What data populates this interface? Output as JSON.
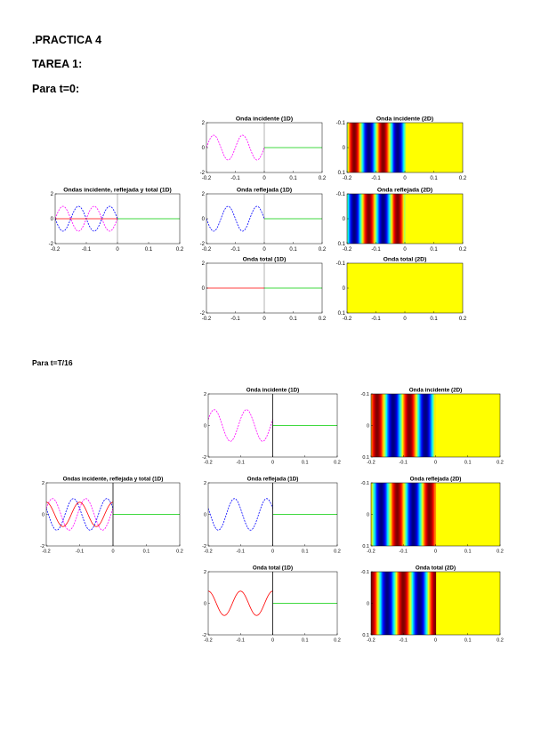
{
  "doc": {
    "heading": ".PRACTICA 4",
    "task": "TAREA 1:",
    "section1": "Para t=0:",
    "section2": "Para t=T/16"
  },
  "chart_data": [
    {
      "id": "s1-combined",
      "type": "line",
      "title": "Ondas incidente, reflejada y total (1D)",
      "xlim": [
        -0.2,
        0.2
      ],
      "ylim": [
        -2,
        2
      ],
      "xticks": [
        "-0.2",
        "-0.1",
        "0",
        "0.1",
        "0.2"
      ],
      "yticks": [
        "2",
        "0",
        "-2"
      ],
      "series": [
        {
          "color": "#ff00ff",
          "dash": true,
          "kind": "sin",
          "amp": 1,
          "phase": 0
        },
        {
          "color": "#0000ff",
          "dash": true,
          "kind": "sin",
          "amp": 1,
          "phase": 3.14159
        },
        {
          "color": "#ff0000",
          "dash": false,
          "kind": "zero"
        },
        {
          "color": "#00cc00",
          "dash": false,
          "kind": "right"
        }
      ]
    },
    {
      "id": "s1-inc1d",
      "type": "line",
      "title": "Onda incidente (1D)",
      "xlim": [
        -0.2,
        0.2
      ],
      "ylim": [
        -2,
        2
      ],
      "xticks": [
        "-0.2",
        "-0.1",
        "0",
        "0.1",
        "0.2"
      ],
      "yticks": [
        "2",
        "0",
        "-2"
      ],
      "series": [
        {
          "color": "#ff00ff",
          "dash": true,
          "kind": "sin",
          "amp": 1,
          "phase": 0
        },
        {
          "color": "#00cc00",
          "dash": false,
          "kind": "right"
        }
      ]
    },
    {
      "id": "s1-ref1d",
      "type": "line",
      "title": "Onda reflejada (1D)",
      "xlim": [
        -0.2,
        0.2
      ],
      "ylim": [
        -2,
        2
      ],
      "xticks": [
        "-0.2",
        "-0.1",
        "0",
        "0.1",
        "0.2"
      ],
      "yticks": [
        "2",
        "0",
        "-2"
      ],
      "series": [
        {
          "color": "#0000ff",
          "dash": true,
          "kind": "sin",
          "amp": 1,
          "phase": 3.14159
        },
        {
          "color": "#00cc00",
          "dash": false,
          "kind": "right"
        }
      ]
    },
    {
      "id": "s1-tot1d",
      "type": "line",
      "title": "Onda total (1D)",
      "xlim": [
        -0.2,
        0.2
      ],
      "ylim": [
        -2,
        2
      ],
      "xticks": [
        "-0.2",
        "-0.1",
        "0",
        "0.1",
        "0.2"
      ],
      "yticks": [
        "2",
        "0",
        "-2"
      ],
      "series": [
        {
          "color": "#ff0000",
          "dash": false,
          "kind": "zero"
        },
        {
          "color": "#00cc00",
          "dash": false,
          "kind": "right"
        }
      ]
    },
    {
      "id": "s1-inc2d",
      "type": "heatmap",
      "title": "Onda incidente (2D)",
      "xlim": [
        -0.2,
        0.2
      ],
      "ylim": [
        -0.1,
        0.1
      ],
      "xticks": [
        "-0.2",
        "-0.1",
        "0",
        "0.1",
        "0.2"
      ],
      "yticks": [
        "-0.1",
        "0",
        "0.1"
      ],
      "phase": 0,
      "blank": false
    },
    {
      "id": "s1-ref2d",
      "type": "heatmap",
      "title": "Onda reflejada (2D)",
      "xlim": [
        -0.2,
        0.2
      ],
      "ylim": [
        -0.1,
        0.1
      ],
      "xticks": [
        "-0.2",
        "-0.1",
        "0",
        "0.1",
        "0.2"
      ],
      "yticks": [
        "-0.1",
        "0",
        "0.1"
      ],
      "phase": 3.14159,
      "blank": false
    },
    {
      "id": "s1-tot2d",
      "type": "heatmap",
      "title": "Onda total (2D)",
      "xlim": [
        -0.2,
        0.2
      ],
      "ylim": [
        -0.1,
        0.1
      ],
      "xticks": [
        "-0.2",
        "-0.1",
        "0",
        "0.1",
        "0.2"
      ],
      "yticks": [
        "-0.1",
        "0",
        "0.1"
      ],
      "phase": 0,
      "blank": true
    },
    {
      "id": "s2-combined",
      "type": "line",
      "title": "Ondas incidente, reflejada y total (1D)",
      "xlim": [
        -0.2,
        0.2
      ],
      "ylim": [
        -2,
        2
      ],
      "xticks": [
        "-0.2",
        "-0.1",
        "0",
        "0.1",
        "0.2"
      ],
      "yticks": [
        "2",
        "0",
        "-2"
      ],
      "series": [
        {
          "color": "#ff00ff",
          "dash": true,
          "kind": "sin",
          "amp": 1,
          "phase": 0.3927
        },
        {
          "color": "#0000ff",
          "dash": true,
          "kind": "sin",
          "amp": 1,
          "phase": 2.7489
        },
        {
          "color": "#ff0000",
          "dash": false,
          "kind": "sin",
          "amp": 0.77,
          "phase": 1.5708
        },
        {
          "color": "#00cc00",
          "dash": false,
          "kind": "right"
        }
      ]
    },
    {
      "id": "s2-inc1d",
      "type": "line",
      "title": "Onda incidente (1D)",
      "xlim": [
        -0.2,
        0.2
      ],
      "ylim": [
        -2,
        2
      ],
      "xticks": [
        "-0.2",
        "-0.1",
        "0",
        "0.1",
        "0.2"
      ],
      "yticks": [
        "2",
        "0",
        "-2"
      ],
      "series": [
        {
          "color": "#ff00ff",
          "dash": true,
          "kind": "sin",
          "amp": 1,
          "phase": 0.3927
        },
        {
          "color": "#00cc00",
          "dash": false,
          "kind": "right"
        }
      ]
    },
    {
      "id": "s2-ref1d",
      "type": "line",
      "title": "Onda reflejada (1D)",
      "xlim": [
        -0.2,
        0.2
      ],
      "ylim": [
        -2,
        2
      ],
      "xticks": [
        "-0.2",
        "-0.1",
        "0",
        "0.1",
        "0.2"
      ],
      "yticks": [
        "2",
        "0",
        "-2"
      ],
      "series": [
        {
          "color": "#0000ff",
          "dash": true,
          "kind": "sin",
          "amp": 1,
          "phase": 2.7489
        },
        {
          "color": "#00cc00",
          "dash": false,
          "kind": "right"
        }
      ]
    },
    {
      "id": "s2-tot1d",
      "type": "line",
      "title": "Onda total (1D)",
      "xlim": [
        -0.2,
        0.2
      ],
      "ylim": [
        -2,
        2
      ],
      "xticks": [
        "-0.2",
        "-0.1",
        "0",
        "0.1",
        "0.2"
      ],
      "yticks": [
        "2",
        "0",
        "-2"
      ],
      "series": [
        {
          "color": "#ff0000",
          "dash": false,
          "kind": "sin",
          "amp": 0.77,
          "phase": 1.5708
        },
        {
          "color": "#00cc00",
          "dash": false,
          "kind": "right"
        }
      ]
    },
    {
      "id": "s2-inc2d",
      "type": "heatmap",
      "title": "Onda incidente (2D)",
      "xlim": [
        -0.2,
        0.2
      ],
      "ylim": [
        -0.1,
        0.1
      ],
      "xticks": [
        "-0.2",
        "-0.1",
        "0",
        "0.1",
        "0.2"
      ],
      "yticks": [
        "-0.1",
        "0",
        "0.1"
      ],
      "phase": 0.3927,
      "blank": false
    },
    {
      "id": "s2-ref2d",
      "type": "heatmap",
      "title": "Onda reflejada (2D)",
      "xlim": [
        -0.2,
        0.2
      ],
      "ylim": [
        -0.1,
        0.1
      ],
      "xticks": [
        "-0.2",
        "-0.1",
        "0",
        "0.1",
        "0.2"
      ],
      "yticks": [
        "-0.1",
        "0",
        "0.1"
      ],
      "phase": 2.7489,
      "blank": false
    },
    {
      "id": "s2-tot2d",
      "type": "heatmap",
      "title": "Onda total (2D)",
      "xlim": [
        -0.2,
        0.2
      ],
      "ylim": [
        -0.1,
        0.1
      ],
      "xticks": [
        "-0.2",
        "-0.1",
        "0",
        "0.1",
        "0.2"
      ],
      "yticks": [
        "-0.1",
        "0",
        "0.1"
      ],
      "phase": 1.5708,
      "blank": false
    }
  ]
}
